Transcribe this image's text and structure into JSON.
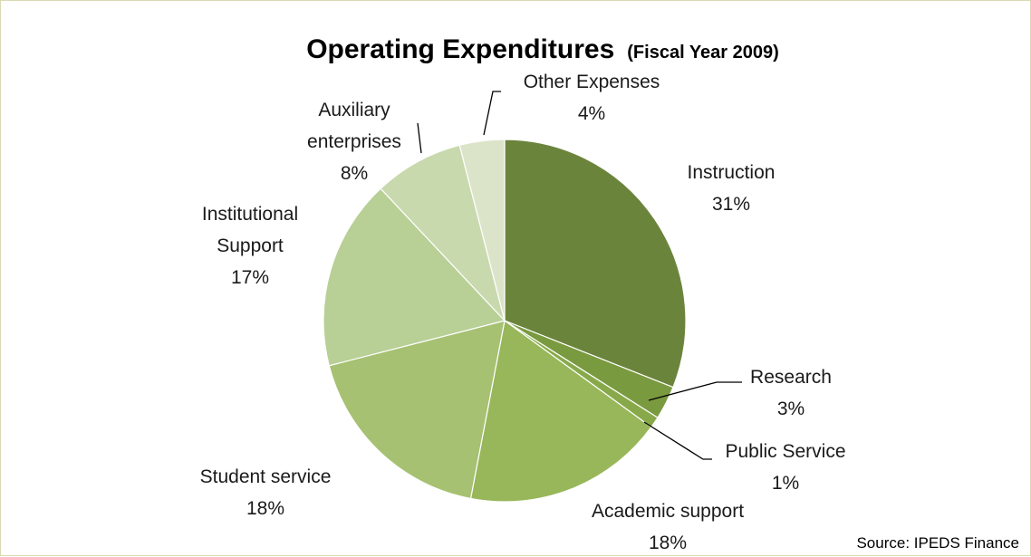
{
  "chart_data": {
    "type": "pie",
    "title": "Operating Expenditures",
    "subtitle": "(Fiscal Year 2009)",
    "source": "Source: IPEDS Finance",
    "slices": [
      {
        "label_lines": [
          "Instruction"
        ],
        "percent_label": "31%",
        "value": 31,
        "color": "#6b843c"
      },
      {
        "label_lines": [
          "Research"
        ],
        "percent_label": "3%",
        "value": 3,
        "color": "#7a9a40"
      },
      {
        "label_lines": [
          "Public Service"
        ],
        "percent_label": "1%",
        "value": 1,
        "color": "#88a94a"
      },
      {
        "label_lines": [
          "Academic support"
        ],
        "percent_label": "18%",
        "value": 18,
        "color": "#98b75a"
      },
      {
        "label_lines": [
          "Student service"
        ],
        "percent_label": "18%",
        "value": 18,
        "color": "#a6c172"
      },
      {
        "label_lines": [
          "Institutional",
          "Support"
        ],
        "percent_label": "17%",
        "value": 17,
        "color": "#b8cf96"
      },
      {
        "label_lines": [
          "Auxiliary",
          "enterprises"
        ],
        "percent_label": "8%",
        "value": 8,
        "color": "#c9d9ae"
      },
      {
        "label_lines": [
          "Other Expenses"
        ],
        "percent_label": "4%",
        "value": 4,
        "color": "#dbe4c8"
      }
    ],
    "start_angle_deg": 0,
    "direction": "clockwise",
    "legend": "none"
  }
}
